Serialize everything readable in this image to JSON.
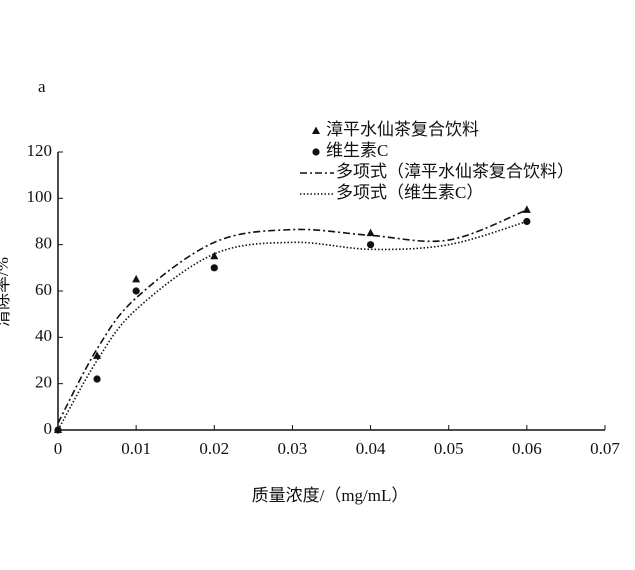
{
  "chart_data": {
    "type": "scatter",
    "panel_label": "a",
    "xlabel": "质量浓度/（mg/mL）",
    "ylabel": "清除率/%",
    "xlim": [
      0,
      0.07
    ],
    "xticks": [
      0,
      0.01,
      0.02,
      0.03,
      0.04,
      0.05,
      0.06,
      0.07
    ],
    "ylim": [
      0,
      120
    ],
    "yticks": [
      0,
      20,
      40,
      60,
      80,
      100,
      120
    ],
    "series": [
      {
        "name": "漳平水仙茶复合饮料",
        "color": "#111111",
        "marker": "triangle",
        "x": [
          0,
          0.005,
          0.01,
          0.02,
          0.04,
          0.06
        ],
        "values": [
          0,
          32,
          65,
          75,
          85,
          95
        ]
      },
      {
        "name": "维生素C",
        "color": "#111111",
        "marker": "circle",
        "x": [
          0,
          0.005,
          0.01,
          0.02,
          0.04,
          0.06
        ],
        "values": [
          0,
          22,
          60,
          70,
          80,
          90
        ]
      }
    ],
    "trendlines": [
      {
        "name": "多项式（漳平水仙茶复合饮料）",
        "color": "#111111",
        "dash": "dashdot",
        "x": [
          0,
          0.005,
          0.01,
          0.02,
          0.03,
          0.04,
          0.05,
          0.06
        ],
        "values": [
          3,
          35,
          57,
          81,
          86.5,
          84,
          82,
          95
        ]
      },
      {
        "name": "多项式（维生素C）",
        "color": "#111111",
        "dash": "dotted",
        "x": [
          0,
          0.005,
          0.01,
          0.02,
          0.03,
          0.04,
          0.05,
          0.06
        ],
        "values": [
          0,
          30,
          52,
          76,
          81,
          78,
          80,
          90
        ]
      }
    ]
  }
}
